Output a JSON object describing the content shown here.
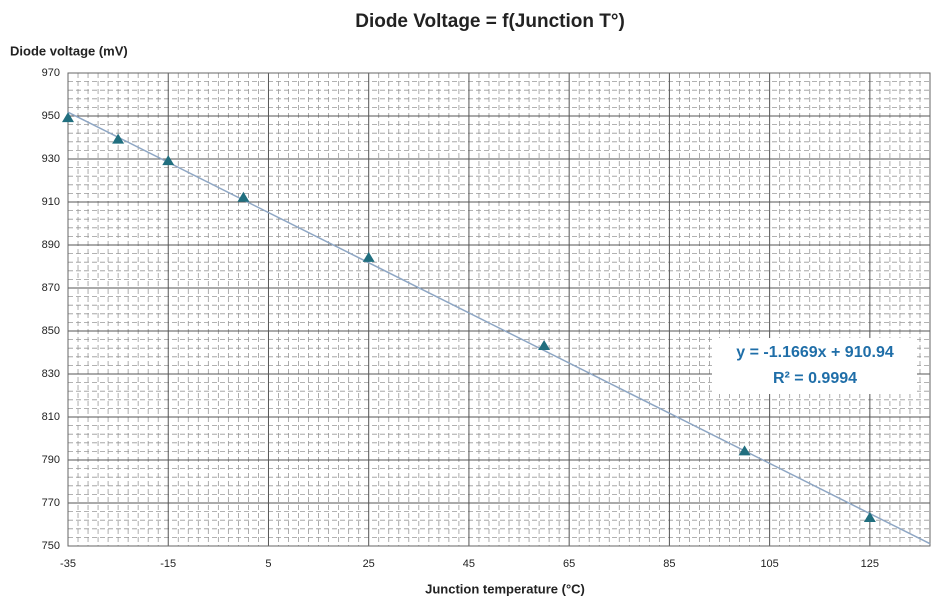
{
  "chart_data": {
    "type": "scatter",
    "title": "Diode Voltage = f(Junction T°)",
    "y_label": "Diode voltage (mV)",
    "x_label": "Junction temperature (°C)",
    "x": [
      -35,
      -25,
      -15,
      0,
      25,
      60,
      100,
      125
    ],
    "values": [
      949,
      939,
      929,
      912,
      884,
      843,
      794,
      763
    ],
    "color": "#216f7f",
    "xlim": [
      -35,
      137
    ],
    "ylim": [
      750,
      970
    ],
    "xticks": [
      -35,
      -15,
      5,
      25,
      45,
      65,
      85,
      105,
      125
    ],
    "yticks": [
      750,
      770,
      790,
      810,
      830,
      850,
      870,
      890,
      910,
      930,
      950,
      970
    ],
    "grid": true,
    "minor_grid": {
      "x": 10,
      "y": 5
    },
    "trendline": {
      "slope": -1.1669,
      "intercept": 910.94,
      "color": "#8ea6c4"
    },
    "trendline_equation": "y = -1.1669x + 910.94",
    "trendline_r2": "R² = 0.9994"
  }
}
